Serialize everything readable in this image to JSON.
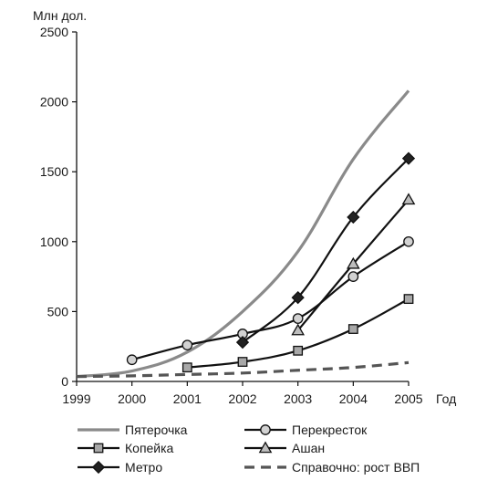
{
  "chart_data": {
    "type": "line",
    "title": "",
    "ylabel": "Млн дол.",
    "xlabel": "Год",
    "xlim": [
      1999,
      2005
    ],
    "ylim": [
      0,
      2500
    ],
    "x_ticks": [
      1999,
      2000,
      2001,
      2002,
      2003,
      2004,
      2005
    ],
    "y_ticks": [
      0,
      500,
      1000,
      1500,
      2000,
      2500
    ],
    "grid": false,
    "legend_position": "bottom",
    "series": [
      {
        "name": "Пятерочка",
        "style": "solid-gray",
        "color": "#8a8a8a",
        "marker": "none",
        "x": [
          1999,
          2000,
          2001,
          2002,
          2003,
          2004,
          2005
        ],
        "y": [
          35,
          75,
          210,
          500,
          930,
          1590,
          2080
        ]
      },
      {
        "name": "Перекресток",
        "style": "solid-black",
        "color": "#111111",
        "marker": "circle",
        "x": [
          2000,
          2001,
          2002,
          2003,
          2004,
          2005
        ],
        "y": [
          155,
          260,
          340,
          450,
          750,
          1000
        ]
      },
      {
        "name": "Копейка",
        "style": "solid-black",
        "color": "#111111",
        "marker": "square",
        "x": [
          2001,
          2002,
          2003,
          2004,
          2005
        ],
        "y": [
          100,
          140,
          220,
          375,
          590
        ]
      },
      {
        "name": "Ашан",
        "style": "solid-black",
        "color": "#111111",
        "marker": "triangle",
        "x": [
          2003,
          2004,
          2005
        ],
        "y": [
          365,
          840,
          1300
        ]
      },
      {
        "name": "Метро",
        "style": "solid-black",
        "color": "#111111",
        "marker": "diamond",
        "x": [
          2002,
          2003,
          2004,
          2005
        ],
        "y": [
          280,
          600,
          1175,
          1595
        ]
      },
      {
        "name": "Справочно: рост ВВП",
        "style": "dashed-gray",
        "color": "#555555",
        "marker": "none",
        "x": [
          1999,
          2000,
          2001,
          2002,
          2003,
          2004,
          2005
        ],
        "y": [
          35,
          40,
          50,
          60,
          80,
          100,
          135
        ]
      }
    ]
  }
}
